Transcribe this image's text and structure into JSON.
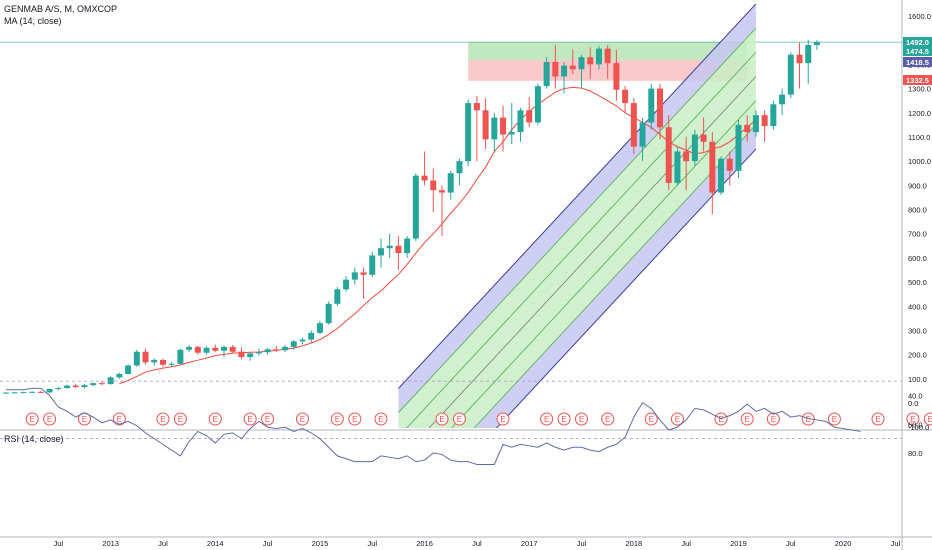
{
  "header": {
    "symbol_line": "GENMAB A/S, M, OMXCOP",
    "ma_label": "MA (14, close)",
    "rsi_label": "RSI (14, close)"
  },
  "chart_data": [
    {
      "type": "candlestick",
      "title": "GENMAB A/S, M, OMXCOP",
      "ylim": [
        -100,
        1650
      ],
      "y_ticks": [
        -100,
        0,
        100,
        200,
        300,
        400,
        500,
        600,
        700,
        800,
        900,
        1000,
        1100,
        1200,
        1300,
        1400,
        1500,
        1600
      ],
      "x_ticks": [
        "Jul",
        "2013",
        "Jul",
        "2014",
        "Jul",
        "2015",
        "Jul",
        "2016",
        "Jul",
        "2017",
        "Jul",
        "2018",
        "Jul",
        "2019",
        "Jul",
        "2020",
        "Jul"
      ],
      "price_labels": [
        {
          "value": "1492.0",
          "color": "#26a69a"
        },
        {
          "value": "1474.5",
          "color": "#26a69a"
        },
        {
          "value": "1418.5",
          "color": "#5b5ea6"
        },
        {
          "value": "1332.5",
          "color": "#ef5350"
        }
      ],
      "horizontal_line": 1492,
      "zones": [
        {
          "name": "resistance-green",
          "from_month": 53,
          "to_month": 85,
          "low": 1418,
          "high": 1492,
          "color": "#b7e4b5"
        },
        {
          "name": "resistance-red",
          "from_month": 53,
          "to_month": 85,
          "low": 1332,
          "high": 1418,
          "color": "#f8c0c0"
        }
      ],
      "channel": {
        "start_month": 45,
        "end_month": 86,
        "mid_start": -240,
        "mid_end": 1350,
        "band_offsets": [
          -300,
          -200,
          -100,
          0,
          100,
          200,
          300
        ],
        "fills": [
          {
            "from": -300,
            "to": -200,
            "color": "#c5c7f0"
          },
          {
            "from": -200,
            "to": -100,
            "color": "#c8edc6"
          },
          {
            "from": -100,
            "to": 100,
            "color": "#c8edc6"
          },
          {
            "from": 100,
            "to": 200,
            "color": "#c8edc6"
          },
          {
            "from": 200,
            "to": 300,
            "color": "#c5c7f0"
          }
        ]
      },
      "earnings_markers": [
        3,
        5,
        9,
        13,
        18,
        20,
        24,
        28,
        30,
        34,
        38,
        40,
        43,
        50,
        52,
        57,
        62,
        64,
        66,
        69,
        74,
        77,
        82,
        85,
        88,
        92,
        95,
        100,
        104,
        106
      ],
      "earnings_label": "E",
      "series": [
        {
          "name": "Price",
          "x_start": "2012-06",
          "ohlc": [
            [
              42,
              45,
              38,
              43
            ],
            [
              43,
              46,
              40,
              44
            ],
            [
              44,
              47,
              41,
              45
            ],
            [
              45,
              49,
              43,
              46
            ],
            [
              46,
              50,
              42,
              44
            ],
            [
              44,
              60,
              42,
              58
            ],
            [
              58,
              66,
              52,
              62
            ],
            [
              62,
              76,
              58,
              72
            ],
            [
              72,
              80,
              62,
              66
            ],
            [
              66,
              78,
              60,
              74
            ],
            [
              74,
              85,
              70,
              82
            ],
            [
              82,
              90,
              74,
              78
            ],
            [
              78,
              110,
              76,
              106
            ],
            [
              106,
              125,
              100,
              120
            ],
            [
              120,
              160,
              118,
              155
            ],
            [
              155,
              220,
              150,
              212
            ],
            [
              212,
              225,
              160,
              168
            ],
            [
              168,
              185,
              155,
              178
            ],
            [
              178,
              184,
              150,
              158
            ],
            [
              158,
              170,
              148,
              162
            ],
            [
              162,
              225,
              158,
              220
            ],
            [
              220,
              240,
              210,
              232
            ],
            [
              232,
              236,
              200,
              208
            ],
            [
              208,
              235,
              200,
              228
            ],
            [
              228,
              242,
              210,
              216
            ],
            [
              216,
              238,
              190,
              232
            ],
            [
              232,
              240,
              205,
              212
            ],
            [
              212,
              230,
              180,
              190
            ],
            [
              190,
              210,
              175,
              205
            ],
            [
              205,
              225,
              195,
              210
            ],
            [
              210,
              228,
              200,
              222
            ],
            [
              222,
              236,
              210,
              218
            ],
            [
              218,
              240,
              210,
              232
            ],
            [
              232,
              260,
              220,
              255
            ],
            [
              255,
              270,
              242,
              262
            ],
            [
              262,
              300,
              250,
              290
            ],
            [
              290,
              340,
              285,
              330
            ],
            [
              330,
              420,
              325,
              410
            ],
            [
              410,
              480,
              400,
              470
            ],
            [
              470,
              525,
              460,
              510
            ],
            [
              510,
              560,
              490,
              540
            ],
            [
              540,
              560,
              430,
              530
            ],
            [
              530,
              625,
              520,
              610
            ],
            [
              610,
              680,
              560,
              640
            ],
            [
              640,
              700,
              600,
              650
            ],
            [
              650,
              690,
              550,
              620
            ],
            [
              620,
              690,
              600,
              680
            ],
            [
              680,
              950,
              670,
              940
            ],
            [
              940,
              1040,
              900,
              920
            ],
            [
              920,
              970,
              790,
              880
            ],
            [
              880,
              900,
              690,
              870
            ],
            [
              870,
              960,
              840,
              950
            ],
            [
              950,
              1010,
              900,
              1000
            ],
            [
              1000,
              1255,
              980,
              1240
            ],
            [
              1240,
              1270,
              1000,
              1210
            ],
            [
              1210,
              1260,
              1050,
              1090
            ],
            [
              1090,
              1200,
              1040,
              1180
            ],
            [
              1180,
              1230,
              1040,
              1110
            ],
            [
              1110,
              1240,
              1070,
              1120
            ],
            [
              1120,
              1220,
              1080,
              1210
            ],
            [
              1210,
              1265,
              1140,
              1160
            ],
            [
              1160,
              1320,
              1150,
              1310
            ],
            [
              1310,
              1430,
              1300,
              1410
            ],
            [
              1410,
              1480,
              1300,
              1350
            ],
            [
              1350,
              1410,
              1280,
              1395
            ],
            [
              1395,
              1460,
              1360,
              1380
            ],
            [
              1380,
              1440,
              1300,
              1430
            ],
            [
              1430,
              1470,
              1340,
              1400
            ],
            [
              1400,
              1475,
              1380,
              1465
            ],
            [
              1465,
              1480,
              1340,
              1405
            ],
            [
              1405,
              1460,
              1250,
              1295
            ],
            [
              1295,
              1310,
              1200,
              1240
            ],
            [
              1240,
              1260,
              1030,
              1060
            ],
            [
              1060,
              1180,
              1000,
              1160
            ],
            [
              1160,
              1320,
              1130,
              1300
            ],
            [
              1300,
              1320,
              1090,
              1140
            ],
            [
              1140,
              1190,
              880,
              910
            ],
            [
              910,
              1060,
              900,
              1040
            ],
            [
              1040,
              1100,
              880,
              1000
            ],
            [
              1000,
              1130,
              980,
              1110
            ],
            [
              1110,
              1180,
              1040,
              1080
            ],
            [
              1080,
              1120,
              780,
              870
            ],
            [
              870,
              1020,
              860,
              1010
            ],
            [
              1010,
              1040,
              900,
              960
            ],
            [
              960,
              1170,
              930,
              1150
            ],
            [
              1150,
              1190,
              1080,
              1120
            ],
            [
              1120,
              1210,
              1100,
              1190
            ],
            [
              1190,
              1210,
              1080,
              1145
            ],
            [
              1145,
              1250,
              1130,
              1235
            ],
            [
              1235,
              1300,
              1190,
              1275
            ],
            [
              1275,
              1450,
              1260,
              1440
            ],
            [
              1440,
              1490,
              1300,
              1405
            ],
            [
              1405,
              1500,
              1320,
              1480
            ],
            [
              1480,
              1500,
              1460,
              1492
            ]
          ],
          "up_color": "#26a69a",
          "down_color": "#ef5350"
        },
        {
          "name": "MA (14, close)",
          "start_index": 13,
          "values": [
            80,
            93,
            110,
            128,
            137,
            144,
            150,
            157,
            168,
            177,
            186,
            196,
            201,
            206,
            208,
            210,
            211,
            214,
            218,
            222,
            227,
            236,
            248,
            262,
            283,
            308,
            339,
            369,
            403,
            436,
            463,
            498,
            531,
            573,
            620,
            663,
            700,
            740,
            785,
            825,
            870,
            925,
            975,
            1040,
            1080,
            1130,
            1170,
            1205,
            1235,
            1260,
            1285,
            1300,
            1305,
            1302,
            1290,
            1270,
            1250,
            1228,
            1200,
            1180,
            1160,
            1140,
            1110,
            1080,
            1060,
            1045,
            1030,
            1035,
            1050,
            1060,
            1080,
            1110,
            1140,
            1170
          ],
          "color": "#f04a3c"
        }
      ]
    },
    {
      "type": "line",
      "title": "RSI (14, close)",
      "ylim": [
        20,
        95
      ],
      "y_ticks": [
        40.0,
        60.0,
        80.0
      ],
      "band": [
        30,
        70
      ],
      "x_start": "2012-06",
      "values": [
        36,
        36,
        36,
        35,
        35,
        40,
        48,
        51,
        55,
        52,
        55,
        59,
        57,
        60,
        58,
        61,
        66,
        70,
        74,
        78,
        82,
        72,
        65,
        68,
        73,
        67,
        66,
        70,
        63,
        58,
        62,
        63,
        62,
        65,
        63,
        66,
        70,
        76,
        82,
        84,
        86,
        86,
        86,
        82,
        83,
        84,
        82,
        86,
        85,
        80,
        81,
        85,
        86,
        86,
        88,
        88,
        88,
        74,
        76,
        74,
        75,
        76,
        73,
        76,
        78,
        76,
        76,
        78,
        79,
        76,
        74,
        69,
        55,
        45,
        49,
        57,
        64,
        62,
        57,
        49,
        50,
        53,
        56,
        54,
        51,
        46,
        51,
        49,
        53,
        51,
        55,
        54,
        56,
        57,
        58,
        62,
        63,
        64,
        65
      ],
      "color": "#5e6aa8"
    }
  ]
}
